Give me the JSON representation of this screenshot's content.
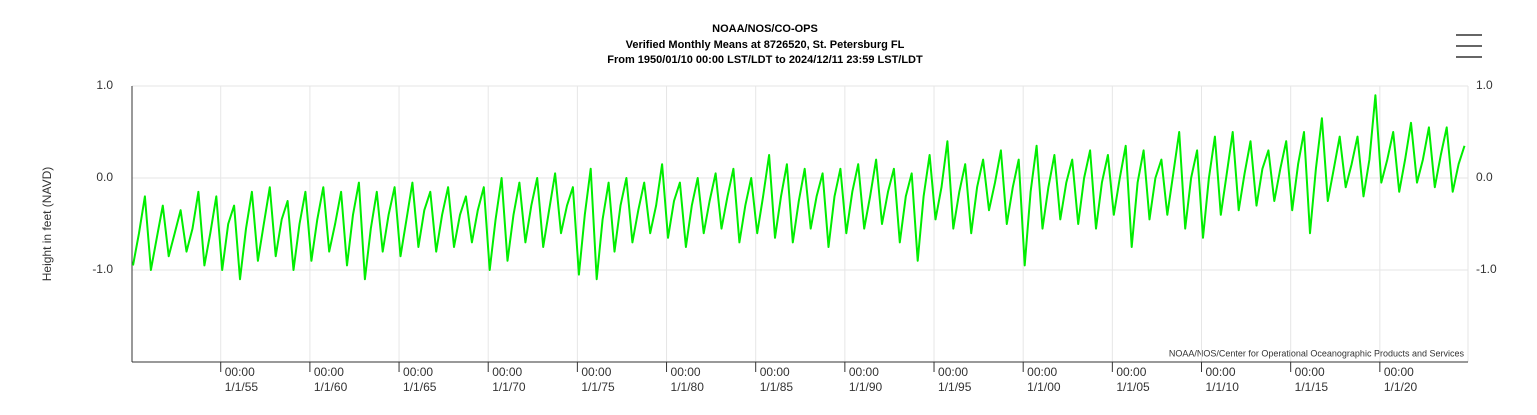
{
  "chart_data": {
    "type": "line",
    "title": "NOAA/NOS/CO-OPS",
    "subtitle": "Verified Monthly Means at 8726520, St. Petersburg FL",
    "subtitle2": "From 1950/01/10 00:00 LST/LDT to 2024/12/11 23:59 LST/LDT",
    "ylabel": "Height in feet (NAVD)",
    "credit": "NOAA/NOS/Center for Operational Oceanographic Products and Services",
    "color": "#00ee00",
    "grid": true,
    "xlim": [
      "1950/01/10",
      "2024/12/11"
    ],
    "ylim": [
      -2,
      1
    ],
    "yticks": [
      {
        "value": 1,
        "label": "1.0"
      },
      {
        "value": 0,
        "label": "0.0"
      },
      {
        "value": -1,
        "label": "-1.0"
      }
    ],
    "xtick_time": "00:00",
    "xticks": [
      {
        "value": "1955/01/01",
        "label": "1/1/55"
      },
      {
        "value": "1960/01/01",
        "label": "1/1/60"
      },
      {
        "value": "1965/01/01",
        "label": "1/1/65"
      },
      {
        "value": "1970/01/01",
        "label": "1/1/70"
      },
      {
        "value": "1975/01/01",
        "label": "1/1/75"
      },
      {
        "value": "1980/01/01",
        "label": "1/1/80"
      },
      {
        "value": "1985/01/01",
        "label": "1/1/85"
      },
      {
        "value": "1990/01/01",
        "label": "1/1/90"
      },
      {
        "value": "1995/01/01",
        "label": "1/1/95"
      },
      {
        "value": "2000/01/01",
        "label": "1/1/00"
      },
      {
        "value": "2005/01/01",
        "label": "1/1/05"
      },
      {
        "value": "2010/01/01",
        "label": "1/1/10"
      },
      {
        "value": "2015/01/01",
        "label": "1/1/15"
      },
      {
        "value": "2020/01/01",
        "label": "1/1/20"
      }
    ],
    "x": [
      "1950/02",
      "1950/06",
      "1950/10",
      "1951/02",
      "1951/06",
      "1951/10",
      "1952/02",
      "1952/06",
      "1952/10",
      "1953/02",
      "1953/06",
      "1953/10",
      "1954/02",
      "1954/06",
      "1954/10",
      "1955/02",
      "1955/06",
      "1955/10",
      "1956/02",
      "1956/06",
      "1956/10",
      "1957/02",
      "1957/06",
      "1957/10",
      "1958/02",
      "1958/06",
      "1958/10",
      "1959/02",
      "1959/06",
      "1959/10",
      "1960/02",
      "1960/06",
      "1960/10",
      "1961/02",
      "1961/06",
      "1961/10",
      "1962/02",
      "1962/06",
      "1962/10",
      "1963/02",
      "1963/06",
      "1963/10",
      "1964/02",
      "1964/06",
      "1964/10",
      "1965/02",
      "1965/06",
      "1965/10",
      "1966/02",
      "1966/06",
      "1966/10",
      "1967/02",
      "1967/06",
      "1967/10",
      "1968/02",
      "1968/06",
      "1968/10",
      "1969/02",
      "1969/06",
      "1969/10",
      "1970/02",
      "1970/06",
      "1970/10",
      "1971/02",
      "1971/06",
      "1971/10",
      "1972/02",
      "1972/06",
      "1972/10",
      "1973/02",
      "1973/06",
      "1973/10",
      "1974/02",
      "1974/06",
      "1974/10",
      "1975/02",
      "1975/06",
      "1975/10",
      "1976/02",
      "1976/06",
      "1976/10",
      "1977/02",
      "1977/06",
      "1977/10",
      "1978/02",
      "1978/06",
      "1978/10",
      "1979/02",
      "1979/06",
      "1979/10",
      "1980/02",
      "1980/06",
      "1980/10",
      "1981/02",
      "1981/06",
      "1981/10",
      "1982/02",
      "1982/06",
      "1982/10",
      "1983/02",
      "1983/06",
      "1983/10",
      "1984/02",
      "1984/06",
      "1984/10",
      "1985/02",
      "1985/06",
      "1985/10",
      "1986/02",
      "1986/06",
      "1986/10",
      "1987/02",
      "1987/06",
      "1987/10",
      "1988/02",
      "1988/06",
      "1988/10",
      "1989/02",
      "1989/06",
      "1989/10",
      "1990/02",
      "1990/06",
      "1990/10",
      "1991/02",
      "1991/06",
      "1991/10",
      "1992/02",
      "1992/06",
      "1992/10",
      "1993/02",
      "1993/06",
      "1993/10",
      "1994/02",
      "1994/06",
      "1994/10",
      "1995/02",
      "1995/06",
      "1995/10",
      "1996/02",
      "1996/06",
      "1996/10",
      "1997/02",
      "1997/06",
      "1997/10",
      "1998/02",
      "1998/06",
      "1998/10",
      "1999/02",
      "1999/06",
      "1999/10",
      "2000/02",
      "2000/06",
      "2000/10",
      "2001/02",
      "2001/06",
      "2001/10",
      "2002/02",
      "2002/06",
      "2002/10",
      "2003/02",
      "2003/06",
      "2003/10",
      "2004/02",
      "2004/06",
      "2004/10",
      "2005/02",
      "2005/06",
      "2005/10",
      "2006/02",
      "2006/06",
      "2006/10",
      "2007/02",
      "2007/06",
      "2007/10",
      "2008/02",
      "2008/06",
      "2008/10",
      "2009/02",
      "2009/06",
      "2009/10",
      "2010/02",
      "2010/06",
      "2010/10",
      "2011/02",
      "2011/06",
      "2011/10",
      "2012/02",
      "2012/06",
      "2012/10",
      "2013/02",
      "2013/06",
      "2013/10",
      "2014/02",
      "2014/06",
      "2014/10",
      "2015/02",
      "2015/06",
      "2015/10",
      "2016/02",
      "2016/06",
      "2016/10",
      "2017/02",
      "2017/06",
      "2017/10",
      "2018/02",
      "2018/06",
      "2018/10",
      "2019/02",
      "2019/06",
      "2019/10",
      "2020/02",
      "2020/06",
      "2020/10",
      "2021/02",
      "2021/06",
      "2021/10",
      "2022/02",
      "2022/06",
      "2022/10",
      "2023/02",
      "2023/06",
      "2023/10",
      "2024/02",
      "2024/06",
      "2024/10"
    ],
    "values": [
      -0.95,
      -0.6,
      -0.2,
      -1.0,
      -0.65,
      -0.3,
      -0.85,
      -0.6,
      -0.35,
      -0.8,
      -0.55,
      -0.15,
      -0.95,
      -0.6,
      -0.2,
      -1.0,
      -0.5,
      -0.3,
      -1.1,
      -0.55,
      -0.15,
      -0.9,
      -0.5,
      -0.1,
      -0.85,
      -0.45,
      -0.25,
      -1.0,
      -0.5,
      -0.15,
      -0.9,
      -0.45,
      -0.1,
      -0.8,
      -0.5,
      -0.15,
      -0.95,
      -0.4,
      -0.05,
      -1.1,
      -0.55,
      -0.15,
      -0.8,
      -0.4,
      -0.1,
      -0.85,
      -0.45,
      -0.05,
      -0.75,
      -0.35,
      -0.15,
      -0.8,
      -0.4,
      -0.1,
      -0.75,
      -0.4,
      -0.2,
      -0.7,
      -0.35,
      -0.1,
      -1.0,
      -0.45,
      0.0,
      -0.9,
      -0.4,
      -0.05,
      -0.7,
      -0.3,
      0.0,
      -0.75,
      -0.35,
      0.05,
      -0.6,
      -0.3,
      -0.1,
      -1.05,
      -0.4,
      0.1,
      -1.1,
      -0.45,
      -0.05,
      -0.8,
      -0.3,
      0.0,
      -0.7,
      -0.35,
      -0.05,
      -0.6,
      -0.3,
      0.15,
      -0.65,
      -0.25,
      -0.05,
      -0.75,
      -0.3,
      0.0,
      -0.6,
      -0.25,
      0.05,
      -0.55,
      -0.2,
      0.1,
      -0.7,
      -0.3,
      0.0,
      -0.6,
      -0.2,
      0.25,
      -0.65,
      -0.2,
      0.15,
      -0.7,
      -0.25,
      0.1,
      -0.55,
      -0.2,
      0.05,
      -0.75,
      -0.2,
      0.1,
      -0.6,
      -0.15,
      0.15,
      -0.55,
      -0.2,
      0.2,
      -0.5,
      -0.15,
      0.1,
      -0.7,
      -0.2,
      0.05,
      -0.9,
      -0.2,
      0.25,
      -0.45,
      -0.1,
      0.4,
      -0.55,
      -0.15,
      0.15,
      -0.6,
      -0.1,
      0.2,
      -0.35,
      -0.05,
      0.3,
      -0.5,
      -0.1,
      0.2,
      -0.95,
      -0.15,
      0.35,
      -0.55,
      -0.1,
      0.25,
      -0.45,
      -0.05,
      0.2,
      -0.5,
      0.0,
      0.3,
      -0.55,
      -0.05,
      0.25,
      -0.4,
      0.0,
      0.35,
      -0.75,
      -0.05,
      0.3,
      -0.45,
      0.0,
      0.2,
      -0.4,
      0.05,
      0.5,
      -0.55,
      0.0,
      0.3,
      -0.65,
      0.0,
      0.45,
      -0.4,
      0.05,
      0.5,
      -0.35,
      0.05,
      0.4,
      -0.3,
      0.1,
      0.3,
      -0.25,
      0.1,
      0.4,
      -0.35,
      0.15,
      0.5,
      -0.6,
      0.1,
      0.65,
      -0.25,
      0.1,
      0.45,
      -0.1,
      0.15,
      0.45,
      -0.2,
      0.2,
      0.9,
      -0.05,
      0.2,
      0.5,
      -0.15,
      0.2,
      0.6,
      -0.05,
      0.2,
      0.55,
      -0.1,
      0.25,
      0.55,
      -0.15,
      0.15,
      0.35
    ]
  }
}
